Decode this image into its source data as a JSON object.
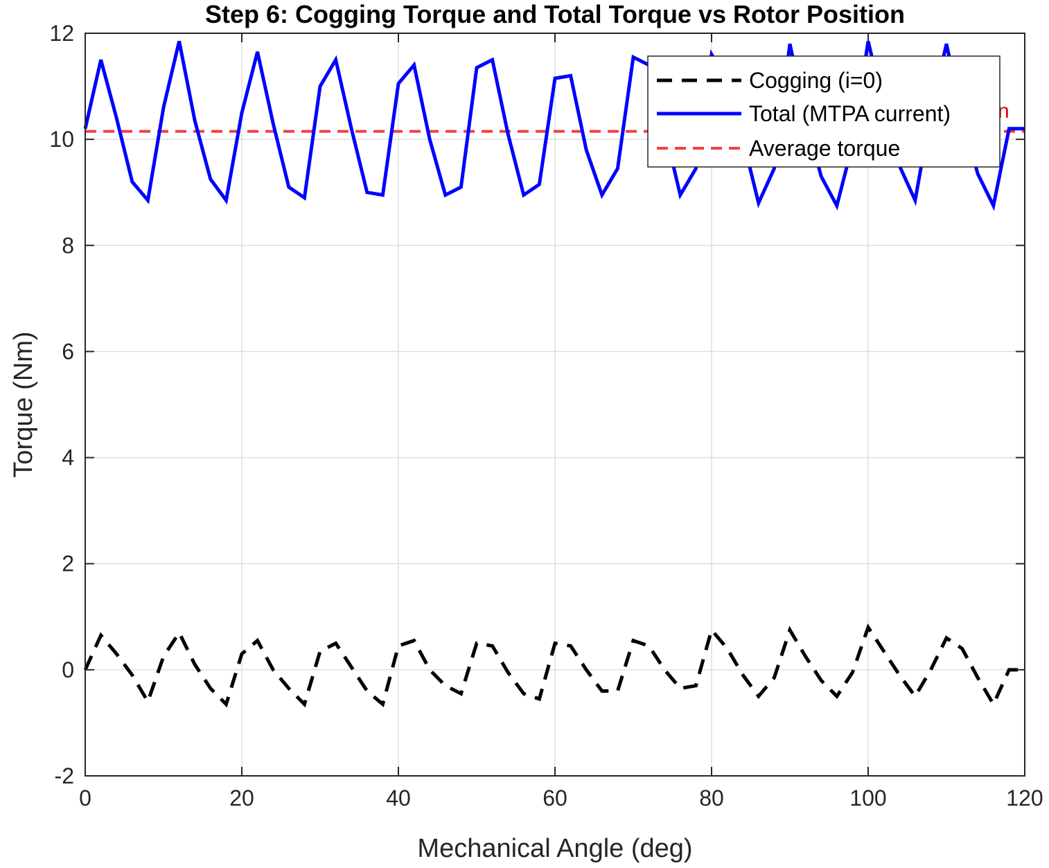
{
  "chart_data": {
    "type": "line",
    "title": "Step 6: Cogging Torque and Total Torque vs Rotor Position",
    "xlabel": "Mechanical Angle (deg)",
    "ylabel": "Torque (Nm)",
    "xlim": [
      0,
      120
    ],
    "ylim": [
      -2,
      12
    ],
    "xticks": [
      0,
      20,
      40,
      60,
      80,
      100,
      120
    ],
    "yticks": [
      -2,
      0,
      2,
      4,
      6,
      8,
      10,
      12
    ],
    "grid": true,
    "legend_position": "top-right",
    "annotation": "n",
    "colors": {
      "cogging": "#000000",
      "total": "#0000ff",
      "average": "#f04040",
      "annotation": "#e00000"
    },
    "series": [
      {
        "name": "Cogging (i=0)",
        "style": "dashed",
        "x": [
          0,
          2,
          4,
          6,
          8,
          10,
          12,
          14,
          16,
          18,
          20,
          22,
          24,
          26,
          28,
          30,
          32,
          34,
          36,
          38,
          40,
          42,
          44,
          46,
          48,
          50,
          52,
          54,
          56,
          58,
          60,
          62,
          64,
          66,
          68,
          70,
          72,
          74,
          76,
          78,
          80,
          82,
          84,
          86,
          88,
          90,
          92,
          94,
          96,
          98,
          100,
          102,
          104,
          106,
          108,
          110,
          112,
          114,
          116,
          118,
          120
        ],
        "values": [
          0.0,
          0.65,
          0.3,
          -0.1,
          -0.6,
          0.25,
          0.7,
          0.1,
          -0.35,
          -0.65,
          0.3,
          0.55,
          0.0,
          -0.35,
          -0.65,
          0.35,
          0.5,
          0.05,
          -0.4,
          -0.65,
          0.45,
          0.55,
          0.0,
          -0.3,
          -0.45,
          0.5,
          0.45,
          -0.05,
          -0.45,
          -0.55,
          0.5,
          0.45,
          0.0,
          -0.4,
          -0.4,
          0.55,
          0.45,
          0.0,
          -0.35,
          -0.3,
          0.75,
          0.4,
          -0.1,
          -0.5,
          -0.15,
          0.75,
          0.25,
          -0.2,
          -0.5,
          -0.05,
          0.8,
          0.35,
          -0.1,
          -0.5,
          0.0,
          0.6,
          0.4,
          -0.15,
          -0.65,
          0.0,
          0.0
        ]
      },
      {
        "name": "Total (MTPA current)",
        "style": "solid",
        "x": [
          0,
          2,
          4,
          6,
          8,
          10,
          12,
          14,
          16,
          18,
          20,
          22,
          24,
          26,
          28,
          30,
          32,
          34,
          36,
          38,
          40,
          42,
          44,
          46,
          48,
          50,
          52,
          54,
          56,
          58,
          60,
          62,
          64,
          66,
          68,
          70,
          72,
          74,
          76,
          78,
          80,
          82,
          84,
          86,
          88,
          90,
          92,
          94,
          96,
          98,
          100,
          102,
          104,
          106,
          108,
          110,
          112,
          114,
          116,
          118,
          120
        ],
        "values": [
          10.2,
          11.5,
          10.4,
          9.2,
          8.85,
          10.6,
          11.85,
          10.35,
          9.25,
          8.85,
          10.5,
          11.65,
          10.3,
          9.1,
          8.9,
          11.0,
          11.5,
          10.2,
          9.0,
          8.95,
          11.05,
          11.4,
          10.0,
          8.95,
          9.1,
          11.35,
          11.5,
          10.1,
          8.95,
          9.15,
          11.15,
          11.2,
          9.8,
          8.95,
          9.45,
          11.55,
          11.4,
          10.2,
          8.95,
          9.45,
          11.6,
          11.1,
          10.0,
          8.8,
          9.45,
          11.8,
          10.4,
          9.3,
          8.75,
          9.9,
          11.85,
          10.6,
          9.5,
          8.85,
          10.5,
          11.8,
          10.4,
          9.35,
          8.75,
          10.2,
          10.2
        ]
      },
      {
        "name": "Average torque",
        "style": "dashed",
        "x": [
          0,
          120
        ],
        "values": [
          10.15,
          10.15
        ]
      }
    ]
  }
}
